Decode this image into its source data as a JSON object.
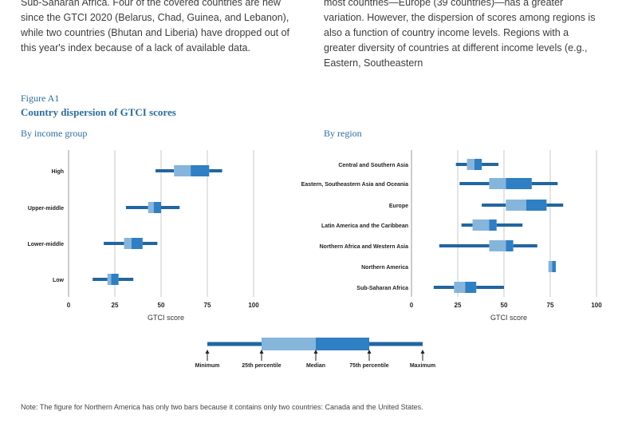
{
  "body_text": {
    "left": "Sub-Saharan Africa. Four of the covered countries are new since the GTCI 2020 (Belarus, Chad, Guinea, and Lebanon), while two countries (Bhutan and Liberia) have dropped out of this year's index because of a lack of available data.",
    "right": "most countries—Europe (39 countries)—has a greater variation. However, the dispersion of scores among regions is also a function of country income levels. Regions with a greater diversity of countries at different income levels (e.g., Eastern, Southeastern"
  },
  "figure": {
    "label": "Figure A1",
    "title": "Country dispersion of GTCI scores"
  },
  "colors": {
    "whisker": "#2166a0",
    "box_low": "#86b5dc",
    "box_high": "#2e7fc3",
    "grid": "#c8c8c8",
    "heading": "#2a6d9e"
  },
  "chart_data": [
    {
      "type": "boxplot",
      "panel": "left",
      "subtitle": "By income group",
      "xlabel": "GTCI score",
      "xlim": [
        0,
        100
      ],
      "xticks": [
        "0",
        "25",
        "50",
        "75",
        "100"
      ],
      "categories": [
        "High",
        "Upper-middle",
        "Lower-middle",
        "Low"
      ],
      "series": [
        {
          "name": "High",
          "min": 47,
          "q1": 57,
          "median": 66,
          "q3": 76,
          "max": 83
        },
        {
          "name": "Upper-middle",
          "min": 31,
          "q1": 43,
          "median": 46,
          "q3": 50,
          "max": 60
        },
        {
          "name": "Lower-middle",
          "min": 19,
          "q1": 30,
          "median": 34,
          "q3": 40,
          "max": 48
        },
        {
          "name": "Low",
          "min": 13,
          "q1": 21,
          "median": 23,
          "q3": 27,
          "max": 35
        }
      ]
    },
    {
      "type": "boxplot",
      "panel": "right",
      "subtitle": "By region",
      "xlabel": "GTCI score",
      "xlim": [
        0,
        100
      ],
      "xticks": [
        "0",
        "25",
        "50",
        "75",
        "100"
      ],
      "categories": [
        "Central and Southern Asia",
        "Eastern, Southeastern Asia and Oceania",
        "Europe",
        "Latin America and the Caribbean",
        "Northern Africa and Western Asia",
        "Northern America",
        "Sub-Saharan Africa"
      ],
      "series": [
        {
          "name": "Central and Southern Asia",
          "min": 24,
          "q1": 30,
          "median": 34,
          "q3": 38,
          "max": 47
        },
        {
          "name": "Eastern, Southeastern Asia and Oceania",
          "min": 26,
          "q1": 42,
          "median": 51,
          "q3": 65,
          "max": 79
        },
        {
          "name": "Europe",
          "min": 38,
          "q1": 51,
          "median": 62,
          "q3": 73,
          "max": 82
        },
        {
          "name": "Latin America and the Caribbean",
          "min": 27,
          "q1": 33,
          "median": 42,
          "q3": 46,
          "max": 60
        },
        {
          "name": "Northern Africa and Western Asia",
          "min": 15,
          "q1": 42,
          "median": 51,
          "q3": 55,
          "max": 68
        },
        {
          "name": "Northern America",
          "min": 74,
          "q1": 74,
          "median": 76,
          "q3": 78,
          "max": 78
        },
        {
          "name": "Sub-Saharan Africa",
          "min": 12,
          "q1": 23,
          "median": 29,
          "q3": 35,
          "max": 50
        }
      ]
    }
  ],
  "legend": {
    "labels": [
      "Minimum",
      "25th percentile",
      "Median",
      "75th percentile",
      "Maximum"
    ]
  },
  "note": "Note: The figure for Northern America has only two bars because it contains only two countries: Canada and the United States."
}
